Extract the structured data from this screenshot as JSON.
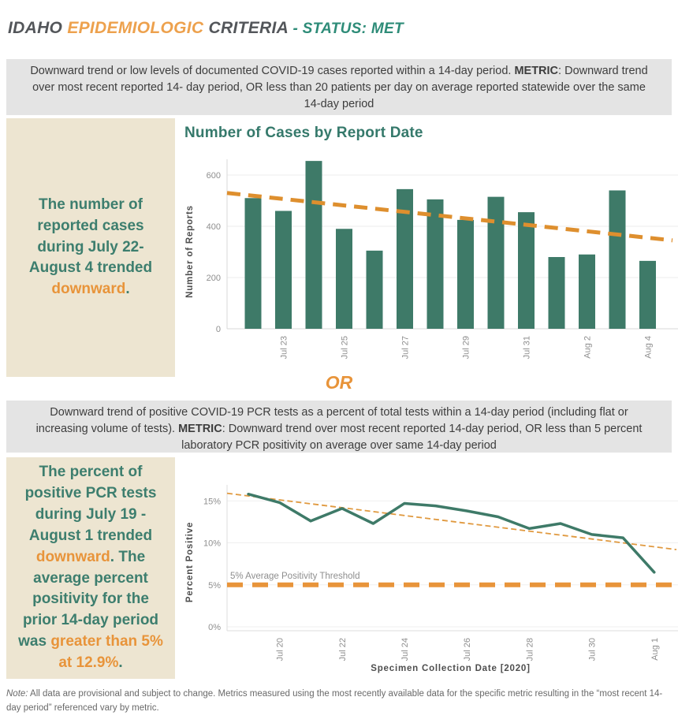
{
  "header": {
    "segments": [
      {
        "text": "IDAHO ",
        "cls": "dark"
      },
      {
        "text": "EPIDEMIOLOGIC ",
        "cls": "orange"
      },
      {
        "text": "CRITERIA ",
        "cls": "dark"
      },
      {
        "text": "- STATUS:  MET",
        "cls": "teal"
      }
    ]
  },
  "criterion1": {
    "segments": [
      {
        "text": "Downward trend or low levels of documented COVID-19 cases reported within a 14-day period.  ",
        "cls": ""
      },
      {
        "text": "METRIC",
        "cls": "bold"
      },
      {
        "text": ": Downward trend over most recent reported 14- day period, OR less than 20 patients per day on average reported statewide over the same 14-day period",
        "cls": ""
      }
    ]
  },
  "callout1": {
    "segments": [
      {
        "text": "The number of reported cases during July 22- August 4 trended ",
        "cls": "cteal"
      },
      {
        "text": "downward",
        "cls": "corange"
      },
      {
        "text": ".",
        "cls": "cteal"
      }
    ]
  },
  "or_label": "OR",
  "criterion2": {
    "segments": [
      {
        "text": "Downward trend of positive COVID-19 PCR tests as a percent of total tests within a 14-day period (including flat or increasing volume of tests). ",
        "cls": ""
      },
      {
        "text": "METRIC",
        "cls": "bold"
      },
      {
        "text": ": Downward trend over most recent reported 14-day period, OR less than 5 percent laboratory PCR positivity on average over same 14-day period",
        "cls": ""
      }
    ]
  },
  "callout2": {
    "segments": [
      {
        "text": "The percent of positive PCR tests during July 19 - August 1 trended ",
        "cls": "cteal"
      },
      {
        "text": "downward",
        "cls": "corange"
      },
      {
        "text": ". The average percent positivity for the prior 14-day period was ",
        "cls": "cteal"
      },
      {
        "text": "greater than 5% at 12.9%",
        "cls": "corange"
      },
      {
        "text": ".",
        "cls": "cteal"
      }
    ]
  },
  "note": {
    "segments": [
      {
        "text": "Note:",
        "cls": "italic"
      },
      {
        "text": " All data are provisional and subject to change. Metrics measured using the most recently available data for the specific metric resulting in the “most recent 14-day period” referenced vary by metric.",
        "cls": ""
      }
    ]
  },
  "colors": {
    "accent_orange": "#E8943A",
    "title_orange": "#EDA14D",
    "status_teal": "#2E8C78",
    "callout_teal": "#3D7E6E",
    "chart_green": "#3E7A68",
    "trend_orange": "#DE8F2E",
    "beige_panel": "#EDE5D1",
    "gray_panel": "#E4E4E4",
    "header_dark": "#53565A"
  },
  "chart_data": [
    {
      "type": "bar",
      "title": "Number of Cases by Report Date",
      "xlabel": "",
      "ylabel": "Number of Reports",
      "categories": [
        "Jul 22",
        "Jul 23",
        "Jul 24",
        "Jul 25",
        "Jul 26",
        "Jul 27",
        "Jul 28",
        "Jul 29",
        "Jul 30",
        "Jul 31",
        "Aug 1",
        "Aug 2",
        "Aug 3",
        "Aug 4"
      ],
      "values": [
        510,
        460,
        655,
        390,
        305,
        545,
        505,
        425,
        515,
        455,
        280,
        290,
        540,
        265
      ],
      "x_tick_labels": [
        "Jul 23",
        "Jul 25",
        "Jul 27",
        "Jul 29",
        "Jul 31",
        "Aug 2",
        "Aug 4"
      ],
      "yticks": [
        0,
        200,
        400,
        600
      ],
      "ylim": [
        0,
        700
      ],
      "grid": true,
      "trendline": {
        "start": 530,
        "end": 345,
        "style": "dashed"
      },
      "bar_color": "#3E7A68",
      "trend_color": "#DE8F2E"
    },
    {
      "type": "line",
      "title": "",
      "xlabel": "Specimen Collection Date [2020]",
      "ylabel": "Percent Positive",
      "x": [
        "Jul 19",
        "Jul 20",
        "Jul 21",
        "Jul 22",
        "Jul 23",
        "Jul 24",
        "Jul 25",
        "Jul 26",
        "Jul 27",
        "Jul 28",
        "Jul 29",
        "Jul 30",
        "Jul 31",
        "Aug 1"
      ],
      "values": [
        15.8,
        14.8,
        12.6,
        14.1,
        12.3,
        14.7,
        14.4,
        13.8,
        13.1,
        11.7,
        12.3,
        11.0,
        10.6,
        6.5
      ],
      "x_tick_labels": [
        "Jul 20",
        "Jul 22",
        "Jul 24",
        "Jul 26",
        "Jul 28",
        "Jul 30",
        "Aug 1"
      ],
      "yticks": [
        "0%",
        "5%",
        "10%",
        "15%"
      ],
      "ytick_values": [
        0,
        5,
        10,
        15
      ],
      "ylim": [
        0,
        17
      ],
      "grid": true,
      "threshold": {
        "value": 5,
        "label": "5% Average Positivity Threshold"
      },
      "trendline": {
        "start": 15.9,
        "end": 9.2,
        "style": "dashed"
      },
      "line_color": "#3E7A68",
      "trend_color": "#E0993F",
      "threshold_color": "#E8943A"
    }
  ]
}
